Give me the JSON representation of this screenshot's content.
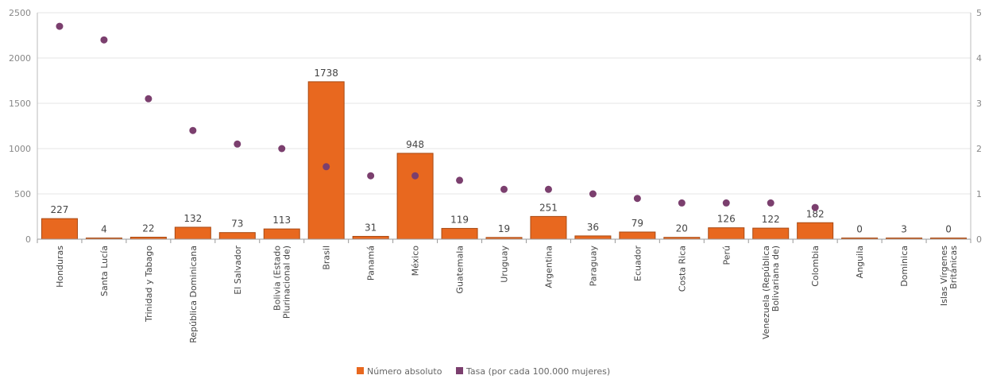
{
  "chart_data": {
    "type": "bar",
    "categories": [
      "Honduras",
      "Santa Lucía",
      "Trinidad y Tabago",
      "República Dominicana",
      "El Salvador",
      "Bolivia (Estado Plurinacional de)",
      "Brasil",
      "Panamá",
      "México",
      "Guatemala",
      "Uruguay",
      "Argentina",
      "Paraguay",
      "Ecuador",
      "Costa Rica",
      "Perú",
      "Venezuela (República Bolivariana de)",
      "Colombia",
      "Anguila",
      "Dominica",
      "Islas Vírgenes Británicas"
    ],
    "series": [
      {
        "name": "Número absoluto",
        "type": "bar",
        "axis": "left",
        "color": "#e8681f",
        "values": [
          227,
          4,
          22,
          132,
          73,
          113,
          1738,
          31,
          948,
          119,
          19,
          251,
          36,
          79,
          20,
          126,
          122,
          182,
          0,
          3,
          0
        ],
        "labels": [
          "227",
          "4",
          "22",
          "132",
          "73",
          "113",
          "1738",
          "31",
          "948",
          "119",
          "19",
          "251",
          "36",
          "79",
          "20",
          "126",
          "122",
          "182",
          "0",
          "3",
          "0"
        ]
      },
      {
        "name": "Tasa (por cada 100.000 mujeres)",
        "type": "scatter",
        "axis": "right",
        "color": "#7b3f6e",
        "values": [
          4.7,
          4.4,
          3.1,
          2.4,
          2.1,
          2.0,
          1.6,
          1.4,
          1.4,
          1.3,
          1.1,
          1.1,
          1.0,
          0.9,
          0.8,
          0.8,
          0.8,
          0.7,
          null,
          null,
          null
        ]
      }
    ],
    "ylim": [
      0,
      2500
    ],
    "yticks": [
      0,
      500,
      1000,
      1500,
      2000,
      2500
    ],
    "y2lim": [
      0,
      5
    ],
    "y2ticks": [
      0,
      1,
      2,
      3,
      4,
      5
    ],
    "grid": true,
    "legend_position": "bottom-center"
  }
}
